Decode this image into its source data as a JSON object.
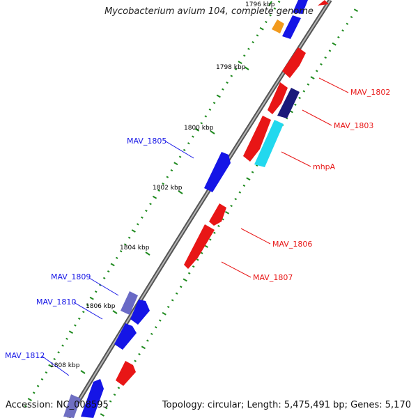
{
  "title": "Mycobacterium avium 104, complete genome",
  "footer": {
    "accession": "Accession: NC_008595",
    "summary": "Topology: circular; Length: 5,475,491 bp; Genes: 5,170"
  },
  "colors": {
    "forward_gene": "#ee1111",
    "reverse_gene": "#1111ee",
    "dark_gene": "#1a1a7a",
    "cyan_gene": "#22d8ee",
    "orange_gene": "#f29a1d",
    "lavender_gene": "#6f6fc2",
    "backbone": "#8a8a8a",
    "gc_dots": "#1e8a1e",
    "tick_label": "#000000"
  },
  "scale_labels": [
    "1796 kbp",
    "1798 kbp",
    "1800 kbp",
    "1802 kbp",
    "1804 kbp",
    "1806 kbp",
    "1808 kbp"
  ],
  "gene_labels": [
    {
      "text": "MAV_1802",
      "strand": "forward"
    },
    {
      "text": "MAV_1803",
      "strand": "forward"
    },
    {
      "text": "mhpA",
      "strand": "forward"
    },
    {
      "text": "MAV_1805",
      "strand": "reverse"
    },
    {
      "text": "MAV_1806",
      "strand": "forward"
    },
    {
      "text": "MAV_1807",
      "strand": "forward"
    },
    {
      "text": "MAV_1809",
      "strand": "reverse"
    },
    {
      "text": "MAV_1810",
      "strand": "reverse"
    },
    {
      "text": "MAV_1812",
      "strand": "reverse"
    }
  ]
}
